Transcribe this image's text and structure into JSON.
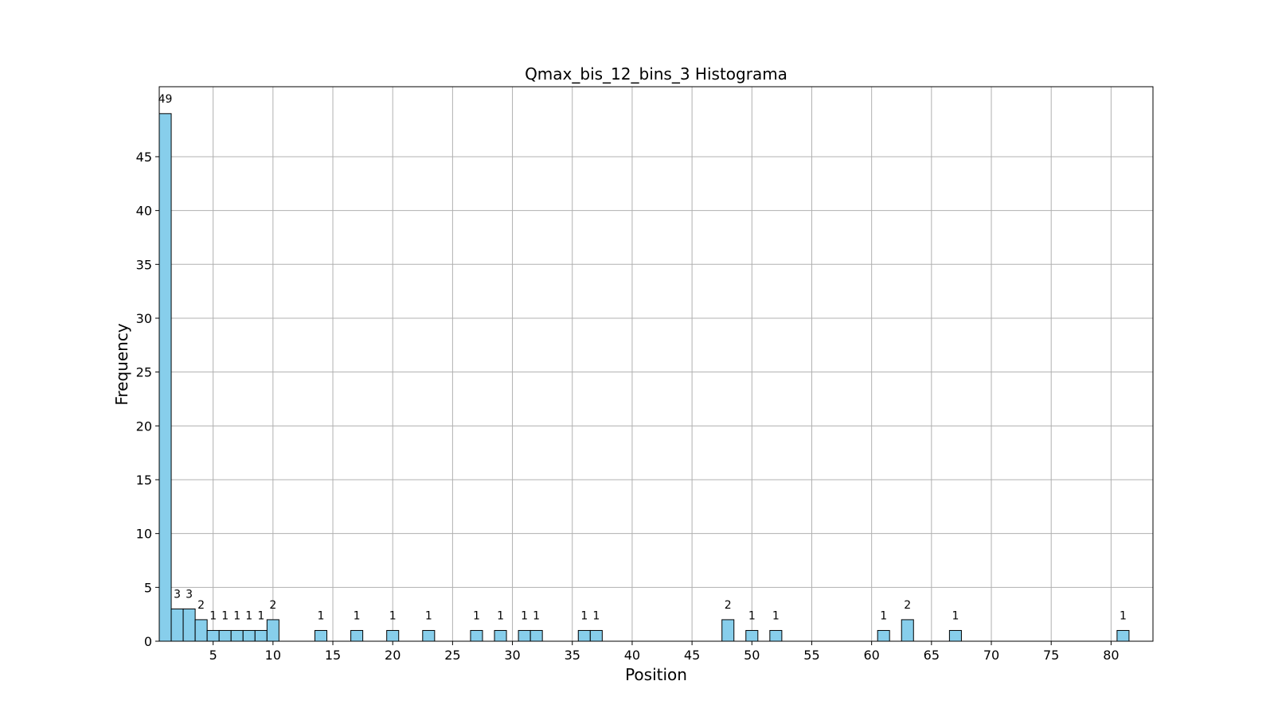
{
  "chart_data": {
    "type": "bar",
    "title": "Qmax_bis_12_bins_3 Histograma",
    "xlabel": "Position",
    "ylabel": "Frequency",
    "xlim": [
      0.5,
      83.5
    ],
    "ylim": [
      0,
      51.5
    ],
    "x_ticks": [
      5,
      10,
      15,
      20,
      25,
      30,
      35,
      40,
      45,
      50,
      55,
      60,
      65,
      70,
      75,
      80
    ],
    "y_ticks": [
      0,
      5,
      10,
      15,
      20,
      25,
      30,
      35,
      40,
      45
    ],
    "grid": true,
    "bar_color": "#87ceeb",
    "edge_color": "#000000",
    "bins": [
      {
        "x": 1,
        "count": 49
      },
      {
        "x": 2,
        "count": 3
      },
      {
        "x": 3,
        "count": 3
      },
      {
        "x": 4,
        "count": 2
      },
      {
        "x": 5,
        "count": 1
      },
      {
        "x": 6,
        "count": 1
      },
      {
        "x": 7,
        "count": 1
      },
      {
        "x": 8,
        "count": 1
      },
      {
        "x": 9,
        "count": 1
      },
      {
        "x": 10,
        "count": 2
      },
      {
        "x": 14,
        "count": 1
      },
      {
        "x": 17,
        "count": 1
      },
      {
        "x": 20,
        "count": 1
      },
      {
        "x": 23,
        "count": 1
      },
      {
        "x": 27,
        "count": 1
      },
      {
        "x": 29,
        "count": 1
      },
      {
        "x": 31,
        "count": 1
      },
      {
        "x": 32,
        "count": 1
      },
      {
        "x": 36,
        "count": 1
      },
      {
        "x": 37,
        "count": 1
      },
      {
        "x": 48,
        "count": 2
      },
      {
        "x": 50,
        "count": 1
      },
      {
        "x": 52,
        "count": 1
      },
      {
        "x": 61,
        "count": 1
      },
      {
        "x": 63,
        "count": 2
      },
      {
        "x": 67,
        "count": 1
      },
      {
        "x": 81,
        "count": 1
      }
    ]
  }
}
